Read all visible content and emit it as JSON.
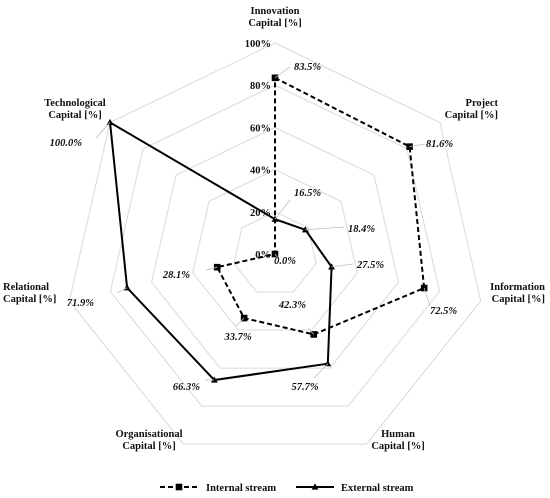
{
  "chart_data": {
    "type": "radar",
    "axes": [
      [
        "Innovation",
        "Capital [%]"
      ],
      [
        "Project",
        "Capital [%]"
      ],
      [
        "Information",
        "Capital [%]"
      ],
      [
        "Human",
        "Capital [%]"
      ],
      [
        "Organisational",
        "Capital [%]"
      ],
      [
        "Relational",
        "Capital [%]"
      ],
      [
        "Technological",
        "Capital [%]"
      ]
    ],
    "ticks": [
      "0%",
      "20%",
      "40%",
      "60%",
      "80%",
      "100%"
    ],
    "tick_values": [
      0,
      20,
      40,
      60,
      80,
      100
    ],
    "range": [
      0,
      100
    ],
    "grid": true,
    "legend_position": "bottom",
    "series": [
      {
        "name": "Internal stream",
        "style": "dashed",
        "marker": "square",
        "values": [
          83.5,
          81.6,
          72.5,
          42.3,
          33.7,
          28.1,
          0.0
        ],
        "labels": [
          "83.5%",
          "81.6%",
          "72.5%",
          "42.3%",
          "33.7%",
          "28.1%",
          "0.0%"
        ]
      },
      {
        "name": "External stream",
        "style": "solid",
        "marker": "triangle",
        "values": [
          16.5,
          18.4,
          27.5,
          57.7,
          66.3,
          71.9,
          100.0
        ],
        "labels": [
          "16.5%",
          "18.4%",
          "27.5%",
          "57.7%",
          "66.3%",
          "71.9%",
          "100.0%"
        ]
      }
    ],
    "colors": {
      "grid": "#d9d9d9",
      "series": "#000000"
    }
  }
}
